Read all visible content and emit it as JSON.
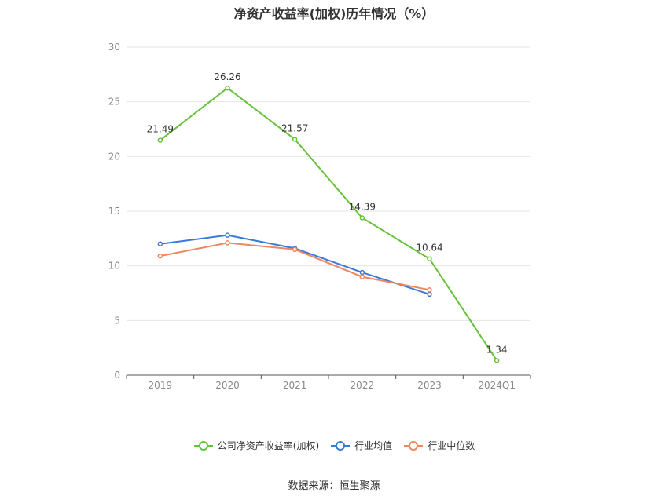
{
  "chart_data": {
    "type": "line",
    "title": "净资产收益率(加权)历年情况（%）",
    "categories": [
      "2019",
      "2020",
      "2021",
      "2022",
      "2023",
      "2024Q1"
    ],
    "ylim": [
      0,
      30
    ],
    "yticks": [
      0,
      5,
      10,
      15,
      20,
      25,
      30
    ],
    "grid": true,
    "legend_position": "bottom-center",
    "series": [
      {
        "name": "公司净资产收益率(加权)",
        "color": "#67c23a",
        "values": [
          21.49,
          26.26,
          21.57,
          14.39,
          10.64,
          1.34
        ],
        "show_labels": true
      },
      {
        "name": "行业均值",
        "color": "#3b78d8",
        "values": [
          12.0,
          12.8,
          11.6,
          9.4,
          7.4,
          null
        ],
        "show_labels": false
      },
      {
        "name": "行业中位数",
        "color": "#f0855f",
        "values": [
          10.9,
          12.1,
          11.5,
          9.0,
          7.8,
          null
        ],
        "show_labels": false
      }
    ]
  },
  "source": "数据来源：恒生聚源"
}
